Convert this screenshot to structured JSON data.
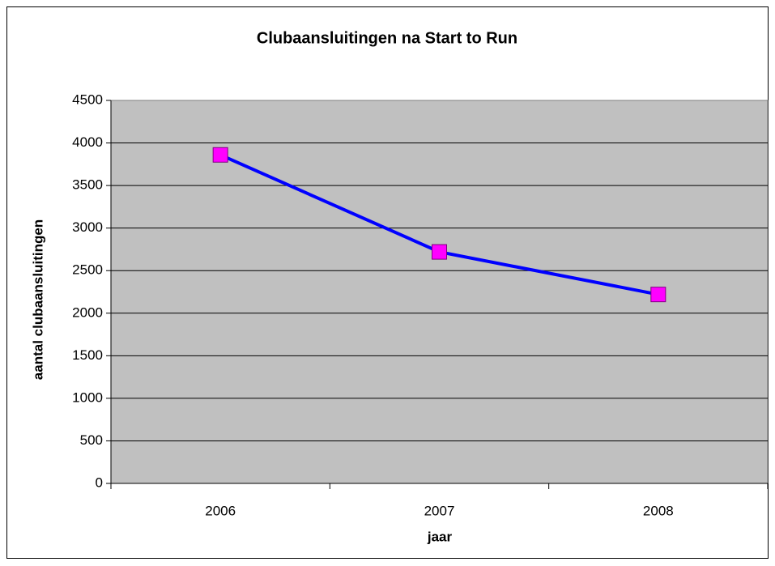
{
  "chart_data": {
    "type": "line",
    "title": "Clubaansluitingen na Start to Run",
    "x_label": "jaar",
    "y_label": "aantal clubaansluitingen",
    "categories": [
      "2006",
      "2007",
      "2008"
    ],
    "values": [
      3860,
      2720,
      2220
    ],
    "color": "#0000ff",
    "marker_color": "#ff00ff",
    "ylim": [
      0,
      4500
    ],
    "yticks": [
      0,
      500,
      1000,
      1500,
      2000,
      2500,
      3000,
      3500,
      4000,
      4500
    ],
    "grid": true
  }
}
